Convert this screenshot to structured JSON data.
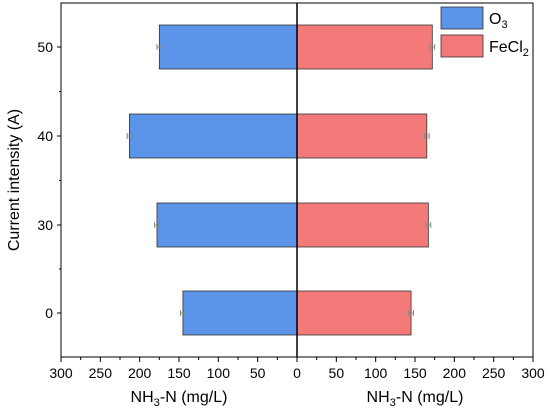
{
  "chart_data": {
    "type": "bar",
    "orientation": "horizontal-butterfly",
    "categories": [
      "0",
      "30",
      "40",
      "50"
    ],
    "ylabel": "Current intensity (A)",
    "xlabel_left": {
      "base": "NH",
      "sub": "3",
      "rest": "-N (mg/L)"
    },
    "xlabel_right": {
      "base": "NH",
      "sub": "3",
      "rest": "-N (mg/L)"
    },
    "x_ticks": [
      300,
      250,
      200,
      150,
      100,
      50,
      0,
      50,
      100,
      150,
      200,
      250,
      300
    ],
    "xlim": [
      0,
      300
    ],
    "grid": false,
    "legend_position": "top-right",
    "series": [
      {
        "name": "O3",
        "legend_label": {
          "base": "O",
          "sub": "3",
          "rest": ""
        },
        "side": "left",
        "color": "#5b93e8",
        "values": [
          145,
          178,
          213,
          175
        ],
        "errors": [
          3,
          3,
          3,
          3
        ]
      },
      {
        "name": "FeCl2",
        "legend_label": {
          "base": "FeCl",
          "sub": "2",
          "rest": ""
        },
        "side": "right",
        "color": "#f47a7a",
        "values": [
          145,
          167,
          165,
          172
        ],
        "errors": [
          3,
          3,
          3,
          3
        ]
      }
    ]
  }
}
